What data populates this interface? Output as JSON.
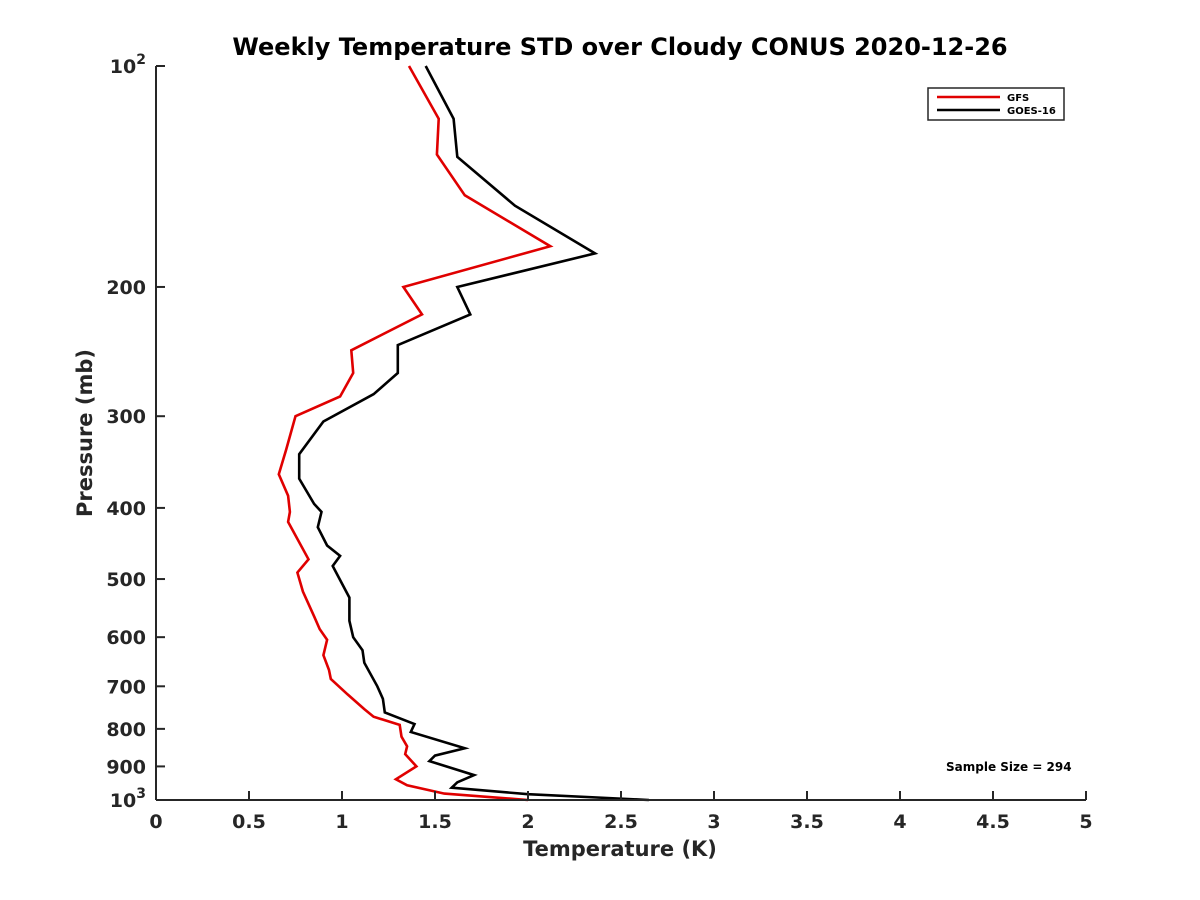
{
  "chart_data": {
    "type": "line",
    "title": "Weekly Temperature STD over Cloudy CONUS 2020-12-26",
    "xlabel": "Temperature (K)",
    "ylabel": "Pressure (mb)",
    "xlim": [
      0,
      5
    ],
    "ylim": [
      100,
      1000
    ],
    "y_scale": "log",
    "y_direction": "reversed",
    "x_ticks": [
      0,
      0.5,
      1,
      1.5,
      2,
      2.5,
      3,
      3.5,
      4,
      4.5,
      5
    ],
    "x_tick_labels": [
      "0",
      "0.5",
      "1",
      "1.5",
      "2",
      "2.5",
      "3",
      "3.5",
      "4",
      "4.5",
      "5"
    ],
    "y_ticks": [
      100,
      200,
      300,
      400,
      500,
      600,
      700,
      800,
      900,
      1000
    ],
    "y_tick_labels": [
      {
        "value": 100,
        "base": "10",
        "exp": "2"
      },
      {
        "value": 200,
        "base": "200",
        "exp": ""
      },
      {
        "value": 300,
        "base": "300",
        "exp": ""
      },
      {
        "value": 400,
        "base": "400",
        "exp": ""
      },
      {
        "value": 500,
        "base": "500",
        "exp": ""
      },
      {
        "value": 600,
        "base": "600",
        "exp": ""
      },
      {
        "value": 700,
        "base": "700",
        "exp": ""
      },
      {
        "value": 800,
        "base": "800",
        "exp": ""
      },
      {
        "value": 900,
        "base": "900",
        "exp": ""
      },
      {
        "value": 1000,
        "base": "10",
        "exp": "3"
      }
    ],
    "grid": false,
    "legend_position": "top-right",
    "annotation": "Sample Size = 294",
    "series": [
      {
        "name": "GFS",
        "color": "#e00000",
        "points": [
          [
            1.36,
            100
          ],
          [
            1.52,
            118
          ],
          [
            1.51,
            132
          ],
          [
            1.66,
            150
          ],
          [
            2.12,
            176
          ],
          [
            1.33,
            200
          ],
          [
            1.43,
            218
          ],
          [
            1.05,
            244
          ],
          [
            1.06,
            262
          ],
          [
            0.99,
            282
          ],
          [
            0.75,
            300
          ],
          [
            0.7,
            333
          ],
          [
            0.66,
            360
          ],
          [
            0.71,
            385
          ],
          [
            0.72,
            405
          ],
          [
            0.71,
            418
          ],
          [
            0.82,
            470
          ],
          [
            0.76,
            490
          ],
          [
            0.79,
            520
          ],
          [
            0.85,
            562
          ],
          [
            0.88,
            585
          ],
          [
            0.92,
            605
          ],
          [
            0.9,
            635
          ],
          [
            0.93,
            665
          ],
          [
            0.94,
            684
          ],
          [
            1.03,
            718
          ],
          [
            1.12,
            752
          ],
          [
            1.17,
            770
          ],
          [
            1.31,
            790
          ],
          [
            1.32,
            820
          ],
          [
            1.35,
            845
          ],
          [
            1.34,
            866
          ],
          [
            1.4,
            900
          ],
          [
            1.29,
            937
          ],
          [
            1.35,
            955
          ],
          [
            1.55,
            980
          ],
          [
            2.0,
            1000
          ]
        ]
      },
      {
        "name": "GOES-16",
        "color": "#000000",
        "points": [
          [
            1.45,
            100
          ],
          [
            1.6,
            118
          ],
          [
            1.62,
            133
          ],
          [
            1.93,
            155
          ],
          [
            2.36,
            180
          ],
          [
            1.62,
            200
          ],
          [
            1.69,
            218
          ],
          [
            1.3,
            240
          ],
          [
            1.3,
            262
          ],
          [
            1.17,
            280
          ],
          [
            0.9,
            305
          ],
          [
            0.77,
            338
          ],
          [
            0.77,
            365
          ],
          [
            0.85,
            395
          ],
          [
            0.89,
            405
          ],
          [
            0.87,
            425
          ],
          [
            0.92,
            450
          ],
          [
            0.99,
            465
          ],
          [
            0.95,
            480
          ],
          [
            1.04,
            530
          ],
          [
            1.04,
            570
          ],
          [
            1.06,
            600
          ],
          [
            1.11,
            625
          ],
          [
            1.12,
            650
          ],
          [
            1.19,
            700
          ],
          [
            1.22,
            728
          ],
          [
            1.23,
            760
          ],
          [
            1.39,
            788
          ],
          [
            1.37,
            808
          ],
          [
            1.66,
            850
          ],
          [
            1.5,
            870
          ],
          [
            1.47,
            885
          ],
          [
            1.71,
            925
          ],
          [
            1.62,
            946
          ],
          [
            1.59,
            962
          ],
          [
            2.0,
            982
          ],
          [
            2.65,
            1000
          ]
        ]
      }
    ]
  }
}
